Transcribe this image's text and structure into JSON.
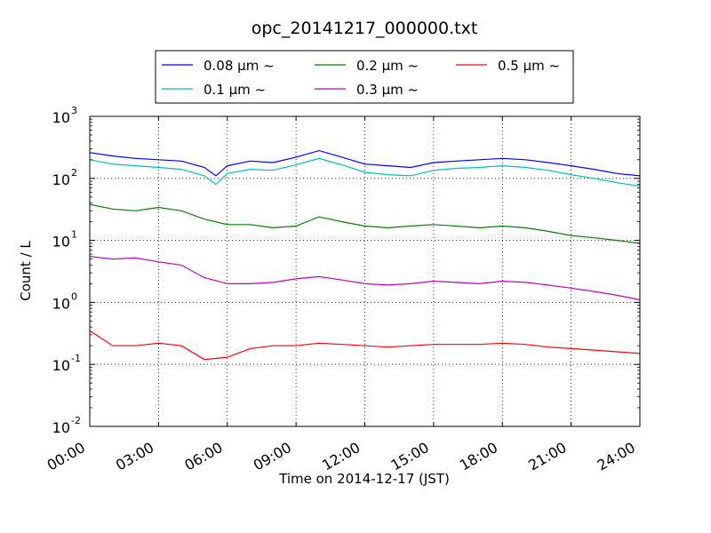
{
  "chart_data": {
    "type": "line",
    "title": "opc_20141217_000000.txt",
    "xlabel": "Time on 2014-12-17 (JST)",
    "ylabel": "Count / L",
    "yscale": "log",
    "xlim": [
      "00:00",
      "24:00"
    ],
    "ylim": [
      0.01,
      1000
    ],
    "x_ticks": [
      "00:00",
      "03:00",
      "06:00",
      "09:00",
      "12:00",
      "15:00",
      "18:00",
      "21:00",
      "24:00"
    ],
    "y_ticks": [
      {
        "base": "10",
        "exp": "-2"
      },
      {
        "base": "10",
        "exp": "-1"
      },
      {
        "base": "10",
        "exp": "0"
      },
      {
        "base": "10",
        "exp": "1"
      },
      {
        "base": "10",
        "exp": "2"
      },
      {
        "base": "10",
        "exp": "3"
      }
    ],
    "grid": true,
    "legend_position": "above plot",
    "series": [
      {
        "name": "0.08 μm ~",
        "color": "#0000ff",
        "x": [
          "00:00",
          "01:00",
          "02:00",
          "03:00",
          "04:00",
          "05:00",
          "05:30",
          "06:00",
          "07:00",
          "08:00",
          "09:00",
          "10:00",
          "11:00",
          "12:00",
          "13:00",
          "14:00",
          "15:00",
          "16:00",
          "17:00",
          "18:00",
          "19:00",
          "20:00",
          "21:00",
          "22:00",
          "23:00",
          "24:00"
        ],
        "y": [
          260,
          230,
          210,
          200,
          190,
          150,
          110,
          160,
          190,
          180,
          220,
          280,
          220,
          170,
          160,
          150,
          180,
          190,
          200,
          210,
          200,
          180,
          160,
          140,
          120,
          110
        ]
      },
      {
        "name": "0.1 μm ~",
        "color": "#00bfbf",
        "x": [
          "00:00",
          "01:00",
          "02:00",
          "03:00",
          "04:00",
          "05:00",
          "05:30",
          "06:00",
          "07:00",
          "08:00",
          "09:00",
          "10:00",
          "11:00",
          "12:00",
          "13:00",
          "14:00",
          "15:00",
          "16:00",
          "17:00",
          "18:00",
          "19:00",
          "20:00",
          "21:00",
          "22:00",
          "23:00",
          "24:00"
        ],
        "y": [
          200,
          170,
          160,
          150,
          140,
          110,
          80,
          120,
          140,
          135,
          165,
          210,
          165,
          125,
          115,
          110,
          135,
          145,
          150,
          160,
          150,
          135,
          115,
          100,
          85,
          75
        ]
      },
      {
        "name": "0.2 μm ~",
        "color": "#008000",
        "x": [
          "00:00",
          "01:00",
          "02:00",
          "03:00",
          "04:00",
          "05:00",
          "06:00",
          "07:00",
          "08:00",
          "09:00",
          "10:00",
          "11:00",
          "12:00",
          "13:00",
          "14:00",
          "15:00",
          "16:00",
          "17:00",
          "18:00",
          "19:00",
          "20:00",
          "21:00",
          "22:00",
          "23:00",
          "24:00"
        ],
        "y": [
          38,
          32,
          30,
          34,
          30,
          22,
          18,
          18,
          16,
          17,
          24,
          20,
          17,
          16,
          17,
          18,
          17,
          16,
          17,
          16,
          14,
          12,
          11,
          10,
          9
        ]
      },
      {
        "name": "0.3 μm ~",
        "color": "#bf00bf",
        "x": [
          "00:00",
          "01:00",
          "02:00",
          "03:00",
          "04:00",
          "05:00",
          "06:00",
          "07:00",
          "08:00",
          "09:00",
          "10:00",
          "11:00",
          "12:00",
          "13:00",
          "14:00",
          "15:00",
          "16:00",
          "17:00",
          "18:00",
          "19:00",
          "20:00",
          "21:00",
          "22:00",
          "23:00",
          "24:00"
        ],
        "y": [
          5.5,
          5.0,
          5.2,
          4.5,
          4.0,
          2.5,
          2.0,
          2.0,
          2.1,
          2.4,
          2.6,
          2.3,
          2.0,
          1.9,
          2.0,
          2.2,
          2.1,
          2.0,
          2.2,
          2.1,
          1.9,
          1.7,
          1.5,
          1.3,
          1.1
        ]
      },
      {
        "name": "0.5 μm ~",
        "color": "#ff0000",
        "x": [
          "00:00",
          "01:00",
          "02:00",
          "03:00",
          "04:00",
          "05:00",
          "06:00",
          "07:00",
          "08:00",
          "09:00",
          "10:00",
          "11:00",
          "12:00",
          "13:00",
          "14:00",
          "15:00",
          "16:00",
          "17:00",
          "18:00",
          "19:00",
          "20:00",
          "21:00",
          "22:00",
          "23:00",
          "24:00"
        ],
        "y": [
          0.35,
          0.2,
          0.2,
          0.22,
          0.2,
          0.12,
          0.13,
          0.18,
          0.2,
          0.2,
          0.22,
          0.21,
          0.2,
          0.19,
          0.2,
          0.21,
          0.21,
          0.21,
          0.22,
          0.21,
          0.19,
          0.18,
          0.17,
          0.16,
          0.15
        ]
      }
    ]
  }
}
